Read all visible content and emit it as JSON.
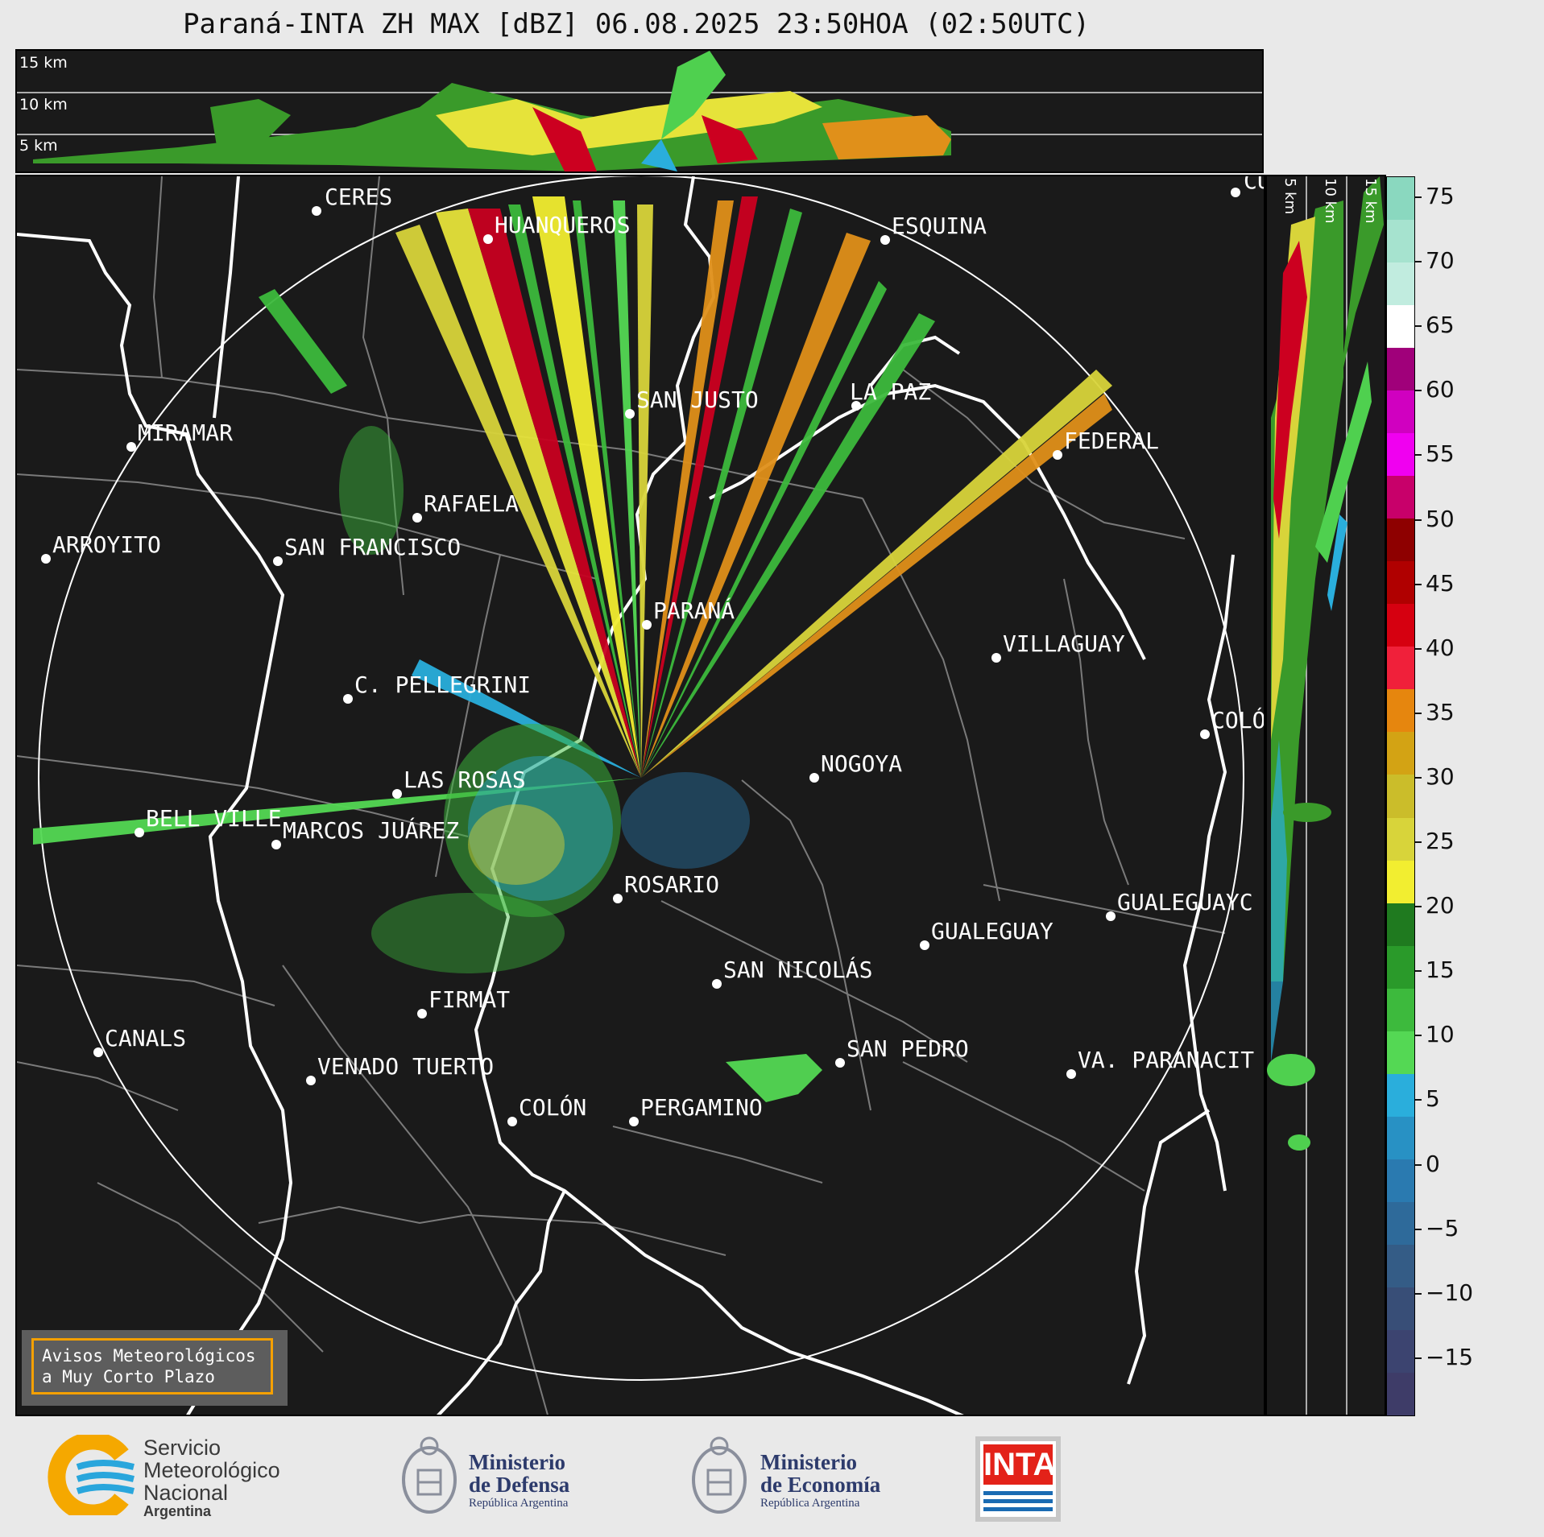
{
  "title": "Paraná-INTA ZH MAX [dBZ] 06.08.2025 23:50HOA (02:50UTC)",
  "top_panel": {
    "levels": [
      "15 km",
      "10 km",
      "5 km"
    ]
  },
  "side_panel": {
    "levels": [
      "5 km",
      "10 km",
      "15 km"
    ]
  },
  "colorbar": {
    "ticks": [
      "75",
      "70",
      "65",
      "60",
      "55",
      "50",
      "45",
      "40",
      "35",
      "30",
      "25",
      "20",
      "15",
      "10",
      "5",
      "0",
      "−5",
      "−10",
      "−15"
    ],
    "colors": [
      "#8ad8bf",
      "#a6e3cf",
      "#c1ecdf",
      "#ffffff",
      "#a0007a",
      "#d000c0",
      "#f000f0",
      "#c8006a",
      "#8e0000",
      "#b00000",
      "#d60010",
      "#f0203a",
      "#e6860e",
      "#d3a314",
      "#cbbd2a",
      "#d8d43a",
      "#f2ee30",
      "#1f7a1f",
      "#2a9a2a",
      "#3dba3d",
      "#54d854",
      "#2aaedc",
      "#2891c4",
      "#2a7ab0",
      "#2e6a9a",
      "#345c86",
      "#384e77",
      "#3c4470",
      "#3e3c68"
    ]
  },
  "cities": [
    {
      "name": "CERES"
    },
    {
      "name": "HUANQUEROS"
    },
    {
      "name": "ESQUINA"
    },
    {
      "name": "CU"
    },
    {
      "name": "MIRAMAR"
    },
    {
      "name": "SAN JUSTO"
    },
    {
      "name": "LA PAZ"
    },
    {
      "name": "FEDERAL"
    },
    {
      "name": "RAFAELA"
    },
    {
      "name": "ARROYITO"
    },
    {
      "name": "SAN FRANCISCO"
    },
    {
      "name": "PARANÁ"
    },
    {
      "name": "VILLAGUAY"
    },
    {
      "name": "C. PELLEGRINI"
    },
    {
      "name": "COLÓ"
    },
    {
      "name": "NOGOYA"
    },
    {
      "name": "LAS ROSAS"
    },
    {
      "name": "BELL VILLE"
    },
    {
      "name": "MARCOS JUÁREZ"
    },
    {
      "name": "ROSARIO"
    },
    {
      "name": "GUALEGUAYC"
    },
    {
      "name": "GUALEGUAY"
    },
    {
      "name": "SAN NICOLÁS"
    },
    {
      "name": "FIRMAT"
    },
    {
      "name": "CANALS"
    },
    {
      "name": "SAN PEDRO"
    },
    {
      "name": "VA. PARANACIT"
    },
    {
      "name": "VENADO TUERTO"
    },
    {
      "name": "COLÓN"
    },
    {
      "name": "PERGAMINO"
    }
  ],
  "notice": {
    "line1": "Avisos Meteorológicos",
    "line2": "a Muy Corto Plazo"
  },
  "footer": {
    "smn": {
      "l1": "Servicio",
      "l2": "Meteorológico",
      "l3": "Nacional",
      "l4": "Argentina"
    },
    "defensa": {
      "l1": "Ministerio",
      "l2": "de Defensa",
      "l3": "República Argentina"
    },
    "economia": {
      "l1": "Ministerio",
      "l2": "de Economía",
      "l3": "República Argentina"
    },
    "inta": "INTA"
  }
}
